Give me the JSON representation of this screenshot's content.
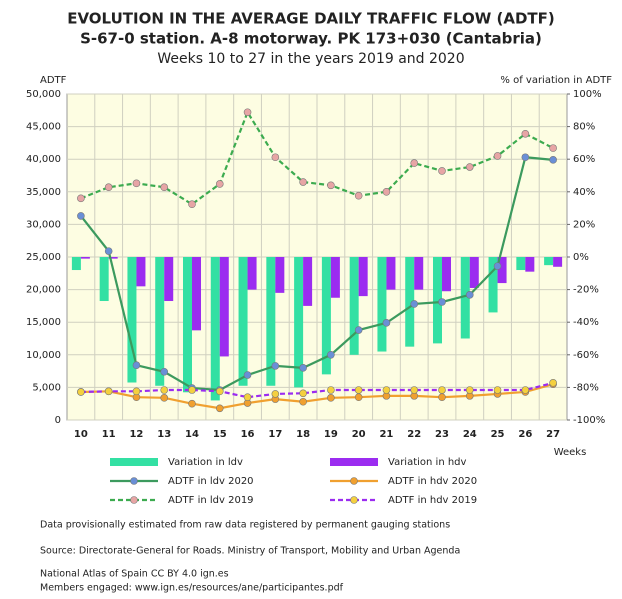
{
  "chart_data": {
    "type": "combo",
    "title": "EVOLUTION IN THE AVERAGE DAILY TRAFFIC FLOW (ADTF)",
    "subtitle": "S-67-0 station. A-8 motorway. PK 173+030 (Cantabria)",
    "period": "Weeks 10 to 27 in the years 2019 and 2020",
    "y_label": "ADTF",
    "y2_label": "% of variation in ADTF",
    "x_label": "Weeks",
    "categories": [
      "10",
      "11",
      "12",
      "13",
      "14",
      "15",
      "16",
      "17",
      "18",
      "19",
      "20",
      "21",
      "22",
      "23",
      "24",
      "25",
      "26",
      "27"
    ],
    "ylim": [
      0,
      50000
    ],
    "yticks": [
      0,
      {
        "value": 5000,
        "label": "5,000"
      },
      {
        "value": 10000,
        "label": "10,000"
      },
      {
        "value": 15000,
        "label": "15,000"
      },
      {
        "value": 20000,
        "label": "20,000"
      },
      {
        "value": 25000,
        "label": "25,000"
      },
      {
        "value": 30000,
        "label": "30,000"
      },
      {
        "value": 35000,
        "label": "35,000"
      },
      {
        "value": 40000,
        "label": "40,000"
      },
      {
        "value": 45000,
        "label": "45,000"
      },
      {
        "value": 50000,
        "label": "50,000"
      }
    ],
    "y2lim": [
      -100,
      100
    ],
    "y2ticks": [
      {
        "value": -100,
        "label": "-100%"
      },
      {
        "value": -80,
        "label": "-80%"
      },
      {
        "value": -60,
        "label": "-60%"
      },
      {
        "value": -40,
        "label": "-40%"
      },
      {
        "value": -20,
        "label": "-20%"
      },
      {
        "value": 0,
        "label": "0%"
      },
      {
        "value": 20,
        "label": "20%"
      },
      {
        "value": 40,
        "label": "40%"
      },
      {
        "value": 60,
        "label": "60%"
      },
      {
        "value": 80,
        "label": "80%"
      },
      {
        "value": 100,
        "label": "100%"
      }
    ],
    "grid": true,
    "series": [
      {
        "name": "Variation in ldv",
        "type": "bar",
        "axis": "y2",
        "color": "#33e0a3",
        "values": [
          -8,
          -27,
          -77,
          -79,
          -83,
          -88,
          -79,
          -79,
          -80,
          -72,
          -60,
          -58,
          -55,
          -53,
          -50,
          -34,
          -8,
          -5
        ]
      },
      {
        "name": "Variation in hdv",
        "type": "bar",
        "axis": "y2",
        "color": "#9b2cf0",
        "values": [
          -1,
          -1,
          -18,
          -27,
          -45,
          -61,
          -20,
          -22,
          -30,
          -25,
          -24,
          -20,
          -20,
          -21,
          -19,
          -16,
          -9,
          -6
        ]
      },
      {
        "name": "ADTF in ldv 2020",
        "type": "line",
        "color": "#3c9a5e",
        "marker_color": "#6a8fd6",
        "dashed": false,
        "values": [
          31300,
          25900,
          8400,
          7400,
          4900,
          4600,
          6900,
          8300,
          8000,
          10000,
          13800,
          14900,
          17800,
          18100,
          19200,
          23600,
          40300,
          39900
        ]
      },
      {
        "name": "ADTF in hdv 2020",
        "type": "line",
        "color": "#f0a030",
        "marker_color": "#f0a030",
        "dashed": false,
        "values": [
          4300,
          4400,
          3500,
          3400,
          2500,
          1800,
          2600,
          3200,
          2800,
          3400,
          3500,
          3700,
          3700,
          3500,
          3700,
          4000,
          4300,
          5500
        ]
      },
      {
        "name": "ADTF in ldv 2019",
        "type": "line",
        "color": "#3cab4f",
        "marker_color": "#e7a5a5",
        "dashed": true,
        "values": [
          34000,
          35700,
          36300,
          35700,
          33100,
          36200,
          47200,
          40300,
          36500,
          36000,
          34400,
          35000,
          39400,
          38200,
          38800,
          40500,
          43900,
          41700
        ]
      },
      {
        "name": "ADTF in hdv 2019",
        "type": "line",
        "color": "#9b2cf0",
        "marker_color": "#f4d03f",
        "dashed": true,
        "values": [
          4300,
          4400,
          4400,
          4600,
          4600,
          4400,
          3500,
          4000,
          4100,
          4600,
          4600,
          4600,
          4600,
          4600,
          4600,
          4600,
          4600,
          5700
        ]
      }
    ],
    "notes": [
      "Data provisionally estimated from raw data registered by permanent gauging stations",
      "Source: Directorate-General for Roads. Ministry of Transport, Mobility and Urban Agenda",
      "National Atlas of Spain CC BY 4.0 ign.es",
      "Members engaged: www.ign.es/resources/ane/participantes.pdf"
    ]
  }
}
